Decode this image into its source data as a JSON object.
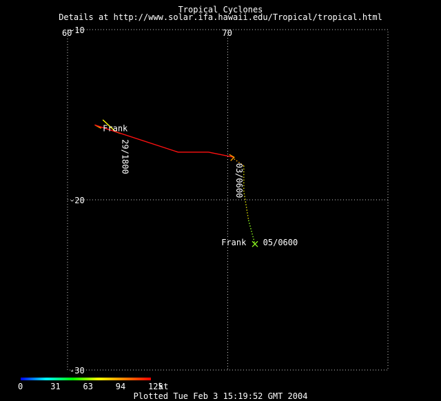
{
  "header": {
    "title": "Tropical Cyclones",
    "subtitle": "Details at http://www.solar.ifa.hawaii.edu/Tropical/tropical.html"
  },
  "map": {
    "lon_range": [
      60,
      80
    ],
    "lat_range": [
      -10,
      -30
    ],
    "lon_labels": [
      "60",
      "70"
    ],
    "lat_labels": [
      "-10",
      "-20",
      "-30"
    ],
    "grid": true,
    "grid_color": "#d0d0d0",
    "background": "#000000"
  },
  "storm": {
    "name": "Frank",
    "track_color": "#ff1010",
    "segments": [
      {
        "color": "#ffff00",
        "style": "solid",
        "points": [
          [
            62.2,
            -15.3
          ],
          [
            63.0,
            -16.0
          ],
          [
            63.3,
            -16.1
          ]
        ]
      },
      {
        "color": "#ffa500",
        "style": "solid",
        "points": [
          [
            61.7,
            -15.6
          ],
          [
            62.1,
            -15.8
          ]
        ]
      },
      {
        "color": "#ff1010",
        "style": "solid",
        "points": [
          [
            61.7,
            -15.6
          ],
          [
            66.9,
            -17.2
          ],
          [
            68.8,
            -17.2
          ],
          [
            70.4,
            -17.5
          ]
        ]
      },
      {
        "color": "#ffa500",
        "style": "dotted",
        "points": [
          [
            70.4,
            -17.6
          ],
          [
            71.0,
            -18.0
          ]
        ]
      },
      {
        "color": "#e0e000",
        "style": "dotted",
        "points": [
          [
            71.0,
            -18.0
          ],
          [
            71.0,
            -19.5
          ],
          [
            71.3,
            -21.2
          ]
        ]
      },
      {
        "color": "#90ff20",
        "style": "dotted",
        "points": [
          [
            71.3,
            -21.2
          ],
          [
            71.7,
            -22.6
          ]
        ]
      }
    ],
    "markers": [
      {
        "type": "arrow",
        "color": "#ffa500",
        "lon": 70.4,
        "lat": -17.5
      },
      {
        "type": "x",
        "color": "#90ff20",
        "lon": 71.7,
        "lat": -22.6
      }
    ],
    "labels": [
      {
        "text": "Frank",
        "lon": 62.2,
        "lat": -15.8,
        "rotate": false
      },
      {
        "text": "29/1800",
        "lon": 63.3,
        "lat": -16.2,
        "rotate": true
      },
      {
        "text": "03/0600",
        "lon": 70.4,
        "lat": -17.6,
        "rotate": true
      },
      {
        "text": "Frank",
        "lon": 69.6,
        "lat": -22.5,
        "rotate": false
      },
      {
        "text": "05/0600",
        "lon": 72.2,
        "lat": -22.5,
        "rotate": false
      }
    ]
  },
  "legend": {
    "gradient": [
      "#0000ff",
      "#00ffff",
      "#00ff00",
      "#ffff00",
      "#ff8000",
      "#ff0000"
    ],
    "ticks": [
      "0",
      "31",
      "63",
      "94",
      "125"
    ],
    "unit": "kt"
  },
  "footer": {
    "text": "Plotted Tue Feb 3 15:19:52 GMT 2004"
  }
}
